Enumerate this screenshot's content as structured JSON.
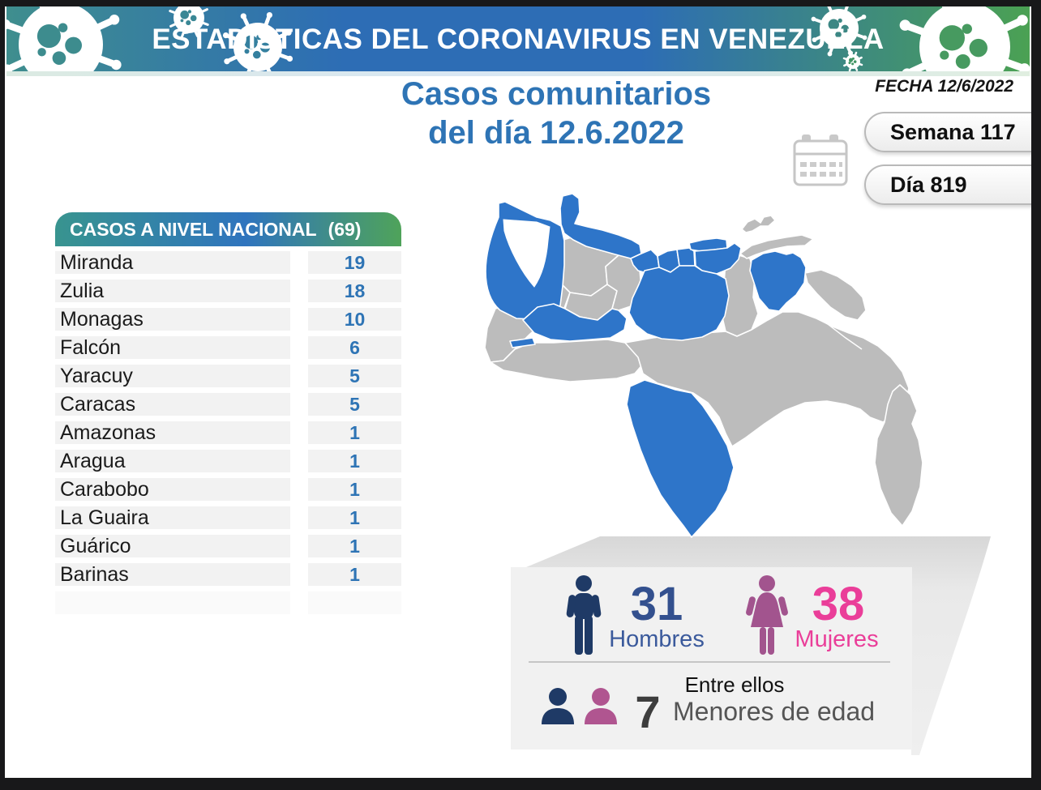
{
  "banner": {
    "title": "ESTADÍSTICAS DEL CORONAVIRUS EN VENEZUELA"
  },
  "titles": {
    "line1": "Casos comunitarios",
    "line2": "del día 12.6.2022"
  },
  "date_info": {
    "fecha": "FECHA 12/6/2022",
    "semana": "Semana 117",
    "dia": "Día 819"
  },
  "table": {
    "title": "CASOS A NIVEL NACIONAL",
    "total": "(69)",
    "rows": [
      {
        "state": "Miranda",
        "cases": "19"
      },
      {
        "state": "Zulia",
        "cases": "18"
      },
      {
        "state": "Monagas",
        "cases": "10"
      },
      {
        "state": "Falcón",
        "cases": "6"
      },
      {
        "state": "Yaracuy",
        "cases": "5"
      },
      {
        "state": "Caracas",
        "cases": "5"
      },
      {
        "state": "Amazonas",
        "cases": "1"
      },
      {
        "state": "Aragua",
        "cases": "1"
      },
      {
        "state": "Carabobo",
        "cases": "1"
      },
      {
        "state": "La Guaira",
        "cases": "1"
      },
      {
        "state": "Guárico",
        "cases": "1"
      },
      {
        "state": "Barinas",
        "cases": "1"
      }
    ]
  },
  "stats": {
    "hombres_value": "31",
    "hombres_label": "Hombres",
    "mujeres_value": "38",
    "mujeres_label": "Mujeres",
    "menores_intro": "Entre ellos",
    "menores_value": "7",
    "menores_label": "Menores de edad"
  },
  "map": {
    "highlighted": [
      "Zulia",
      "Falcón",
      "Yaracuy",
      "Carabobo",
      "Aragua",
      "Caracas",
      "La Guaira",
      "Miranda",
      "Guárico",
      "Monagas",
      "Barinas",
      "Amazonas"
    ],
    "colors": {
      "highlight": "#2e75c9",
      "base": "#bcbcbc",
      "border": "#ffffff"
    }
  },
  "colors": {
    "banner_teal": "#3f8e8e",
    "banner_blue": "#2d6db5",
    "banner_green": "#4ba153",
    "title_blue": "#2e74b5",
    "hombres_navy": "#1f3a66",
    "hombres_text": "#33508e",
    "mujeres_pink": "#ea3e99",
    "mujeres_icon": "#a2548e",
    "menores_gray": "#555555"
  },
  "chart_data": {
    "type": "table",
    "title": "CASOS A NIVEL NACIONAL",
    "total": 69,
    "date": "12.6.2022",
    "fecha": "12/6/2022",
    "semana": 117,
    "dia": 819,
    "categories": [
      "Miranda",
      "Zulia",
      "Monagas",
      "Falcón",
      "Yaracuy",
      "Caracas",
      "Amazonas",
      "Aragua",
      "Carabobo",
      "La Guaira",
      "Guárico",
      "Barinas"
    ],
    "values": [
      19,
      18,
      10,
      6,
      5,
      5,
      1,
      1,
      1,
      1,
      1,
      1
    ],
    "gender": {
      "hombres": 31,
      "mujeres": 38,
      "menores_de_edad": 7
    },
    "map_highlighted_states": [
      "Zulia",
      "Falcón",
      "Yaracuy",
      "Carabobo",
      "Aragua",
      "Caracas",
      "La Guaira",
      "Miranda",
      "Guárico",
      "Monagas",
      "Barinas",
      "Amazonas"
    ]
  }
}
